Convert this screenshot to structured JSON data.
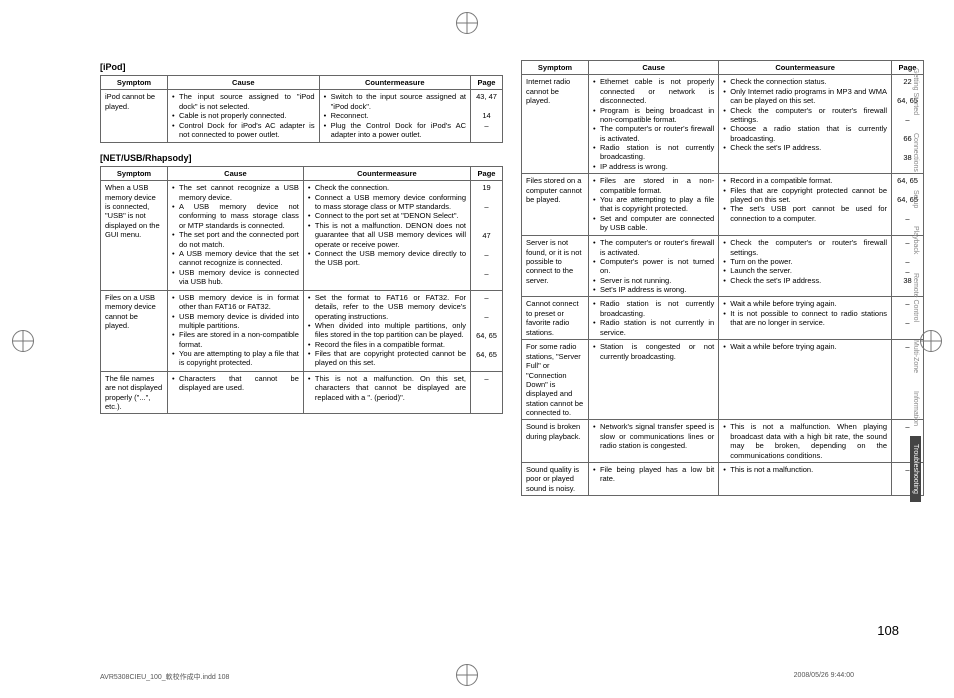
{
  "page_number": "108",
  "footer_left": "AVR5308CIEU_100_軟校作成中.indd   108",
  "footer_right": "2008/05/26   9:44:00",
  "side_tabs": [
    {
      "label": "Getting Started"
    },
    {
      "label": "Connections"
    },
    {
      "label": "Setup"
    },
    {
      "label": "Playback"
    },
    {
      "label": "Remote Control"
    },
    {
      "label": "Multi-Zone"
    },
    {
      "label": "Information"
    },
    {
      "label": "Troubleshooting",
      "active": true
    }
  ],
  "headers": {
    "symptom": "Symptom",
    "cause": "Cause",
    "counter": "Countermeasure",
    "page": "Page"
  },
  "left": {
    "sections": [
      {
        "title": "[iPod]",
        "rows": [
          {
            "symptom": "iPod cannot be played.",
            "items": [
              {
                "cause": "The input source assigned to \"iPod dock\" is not selected.",
                "cm": "Switch to the input source assigned at \"iPod dock\".",
                "page": "43, 47"
              },
              {
                "cause": "Cable is not properly connected.",
                "cm": "Reconnect.",
                "page": "14"
              },
              {
                "cause": "Control Dock for iPod's AC adapter is not connected to power outlet.",
                "cm": "Plug the Control Dock for iPod's AC adapter into a power outlet.",
                "page": "–"
              }
            ]
          }
        ]
      },
      {
        "title": "[NET/USB/Rhapsody]",
        "rows": [
          {
            "symptom": "When a USB memory device is connected, \"USB\" is not displayed on the GUI menu.",
            "items": [
              {
                "cause": "The set cannot recognize a USB memory device.",
                "cm": "Check the connection.",
                "page": "19"
              },
              {
                "cause": "A USB memory device not conforming to mass storage class or MTP standards is connected.",
                "cm": "Connect a USB memory device conforming to mass storage class or MTP standards.",
                "page": "–"
              },
              {
                "cause": "The set port and the connected port do not match.",
                "cm": "Connect to the port set at \"DENON Select\".",
                "page": "47"
              },
              {
                "cause": "A USB memory device that the set cannot recognize is connected.",
                "cm": "This is not a malfunction. DENON does not guarantee that all USB memory devices will operate or receive power.",
                "page": "–"
              },
              {
                "cause": "USB memory device is connected via USB hub.",
                "cm": "Connect the USB memory device directly to the USB port.",
                "page": "–"
              }
            ]
          },
          {
            "symptom": "Files on a USB memory device cannot be played.",
            "items": [
              {
                "cause": "USB memory device is in format other than FAT16 or FAT32.",
                "cm": "Set the format to FAT16 or FAT32. For details, refer to the USB memory device's operating instructions.",
                "page": "–"
              },
              {
                "cause": "USB memory device is divided into multiple partitions.",
                "cm": "When divided into multiple partitions, only files stored in the top partition can be played.",
                "page": "–"
              },
              {
                "cause": "Files are stored in a non-compatible format.",
                "cm": "Record the files in a compatible format.",
                "page": "64, 65"
              },
              {
                "cause": "You are attempting to play a file that is copyright protected.",
                "cm": "Files that are copyright protected cannot be played on this set.",
                "page": "64, 65"
              }
            ]
          },
          {
            "symptom": "The file names are not displayed properly (\"...\", etc.).",
            "items": [
              {
                "cause": "Characters that cannot be displayed are used.",
                "cm": "This is not a malfunction. On this set, characters that cannot be displayed are replaced with a \". (period)\".",
                "page": "–"
              }
            ]
          }
        ]
      }
    ]
  },
  "right": {
    "rows": [
      {
        "symptom": "Internet radio cannot be played.",
        "items": [
          {
            "cause": "Ethernet cable is not properly connected or network is disconnected.",
            "cm": "Check the connection status.",
            "page": "22"
          },
          {
            "cause": "Program is being broadcast in non-compatible format.",
            "cm": "Only Internet radio programs in MP3 and WMA can be played on this set.",
            "page": "64, 65"
          },
          {
            "cause": "The computer's or router's firewall is activated.",
            "cm": "Check the computer's or router's firewall settings.",
            "page": "–"
          },
          {
            "cause": "Radio station is not currently broadcasting.",
            "cm": "Choose a radio station that is currently broadcasting.",
            "page": "66"
          },
          {
            "cause": "IP address is wrong.",
            "cm": "Check the set's IP address.",
            "page": "38"
          }
        ]
      },
      {
        "symptom": "Files stored on a computer cannot be played.",
        "items": [
          {
            "cause": "Files are stored in a non-compatible format.",
            "cm": "Record in a compatible format.",
            "page": "64, 65"
          },
          {
            "cause": "You are attempting to play a file that is copyright protected.",
            "cm": "Files that are copyright protected cannot be played on this set.",
            "page": "64, 65"
          },
          {
            "cause": "Set and computer are connected by USB cable.",
            "cm": "The set's USB port cannot be used for connection to a computer.",
            "page": "–"
          }
        ]
      },
      {
        "symptom": "Server is not found, or it is not possible to connect to the server.",
        "items": [
          {
            "cause": "The computer's or router's firewall is activated.",
            "cm": "Check the computer's or router's firewall settings.",
            "page": "–"
          },
          {
            "cause": "Computer's power is not turned on.",
            "cm": "Turn on the power.",
            "page": "–"
          },
          {
            "cause": "Server is not running.",
            "cm": "Launch the server.",
            "page": "–"
          },
          {
            "cause": "Set's IP address is wrong.",
            "cm": "Check the set's IP address.",
            "page": "38"
          }
        ]
      },
      {
        "symptom": "Cannot connect to preset or favorite radio stations.",
        "items": [
          {
            "cause": "Radio station is not currently broadcasting.",
            "cm": "Wait a while before trying again.",
            "page": "–"
          },
          {
            "cause": "Radio station is not currently in service.",
            "cm": "It is not possible to connect to radio stations that are no longer in service.",
            "page": "–"
          }
        ]
      },
      {
        "symptom": "For some radio stations, \"Server Full\" or \"Connection Down\" is displayed and station cannot be connected to.",
        "items": [
          {
            "cause": "Station is congested or not currently broadcasting.",
            "cm": "Wait a while before trying again.",
            "page": "–"
          }
        ]
      },
      {
        "symptom": "Sound is broken during playback.",
        "items": [
          {
            "cause": "Network's signal transfer speed is slow or communications lines or radio station is congested.",
            "cm": "This is not a malfunction. When playing broadcast data with a high bit rate, the sound may be broken, depending on the communications conditions.",
            "page": "–"
          }
        ]
      },
      {
        "symptom": "Sound quality is poor or played sound is noisy.",
        "items": [
          {
            "cause": "File being played has a low bit rate.",
            "cm": "This is not a malfunction.",
            "page": "–"
          }
        ]
      }
    ]
  }
}
